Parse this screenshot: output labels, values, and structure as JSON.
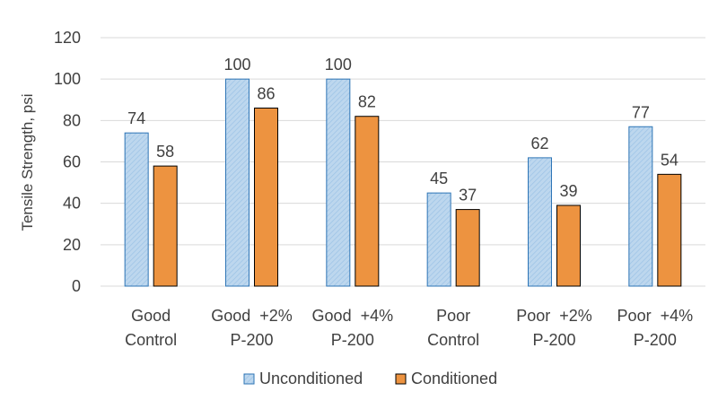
{
  "chart_data": {
    "type": "bar",
    "title": "",
    "xlabel": "",
    "ylabel": "Tensile Strength, psi",
    "ylim": [
      0,
      120
    ],
    "yticks": [
      0,
      20,
      40,
      60,
      80,
      100,
      120
    ],
    "grid": true,
    "legend_position": "bottom",
    "categories": [
      [
        "Good",
        "Control"
      ],
      [
        "Good  +2%",
        "P-200"
      ],
      [
        "Good  +4%",
        "P-200"
      ],
      [
        "Poor",
        "Control"
      ],
      [
        "Poor  +2%",
        "P-200"
      ],
      [
        "Poor  +4%",
        "P-200"
      ]
    ],
    "series": [
      {
        "name": "Unconditioned",
        "values": [
          74,
          100,
          100,
          45,
          62,
          77
        ],
        "color": "#bdd7ee",
        "stroke": "#2e75b6",
        "pattern": "hatched"
      },
      {
        "name": "Conditioned",
        "values": [
          58,
          86,
          82,
          37,
          39,
          54
        ],
        "color": "#ed9340",
        "stroke": "#000000",
        "pattern": "solid"
      }
    ]
  }
}
